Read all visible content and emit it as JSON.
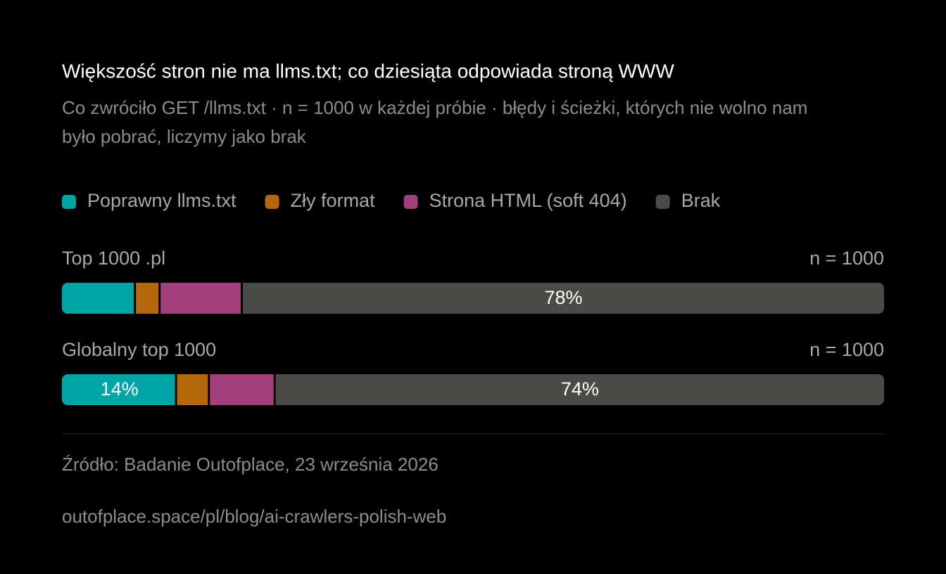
{
  "chart_data": {
    "type": "stacked-bar-horizontal",
    "title": "Większość stron nie ma llms.txt; co dziesiąta odpowiada stroną WWW",
    "subtitle": [
      "Co zwróciło GET /llms.txt · n = 1000 w każdej próbie · błędy i ścieżki, których nie wolno nam",
      "było pobrać, liczymy jako brak"
    ],
    "categories": [
      "Top 1000 .pl",
      "Globalny top 1000"
    ],
    "category_notes": [
      "n = 1000",
      "n = 1000"
    ],
    "xlim": [
      0,
      100
    ],
    "series": [
      {
        "name": "Poprawny llms.txt",
        "color": "#00a5a8",
        "values": [
          9,
          14
        ],
        "value_labels": [
          null,
          "14%"
        ]
      },
      {
        "name": "Zły format",
        "color": "#b4670b",
        "values": [
          3,
          4
        ]
      },
      {
        "name": "Strona HTML (soft 404)",
        "color": "#a23f7c",
        "values": [
          10,
          8
        ]
      },
      {
        "name": "Brak",
        "color": "#4a4a47",
        "values": [
          78,
          74
        ],
        "value_labels": [
          "78%",
          "74%"
        ]
      }
    ],
    "source": "Źródło: Badanie Outofplace, 23 września 2026",
    "url": "outofplace.space/pl/blog/ai-crawlers-polish-web"
  }
}
